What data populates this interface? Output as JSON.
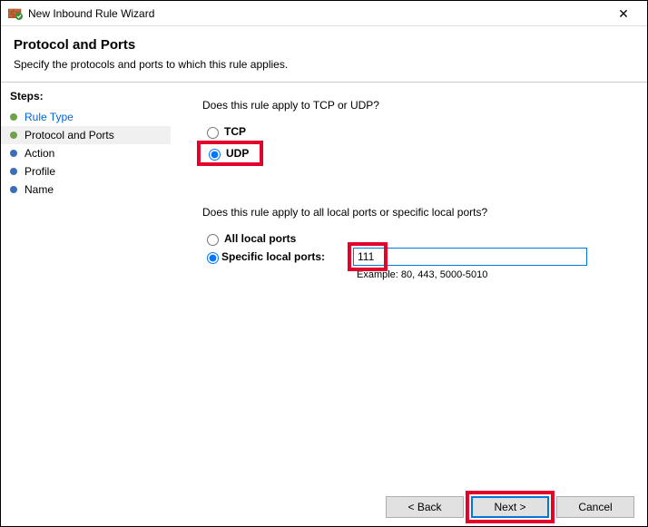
{
  "window": {
    "title": "New Inbound Rule Wizard"
  },
  "header": {
    "title": "Protocol and Ports",
    "subtitle": "Specify the protocols and ports to which this rule applies."
  },
  "steps": {
    "label": "Steps:",
    "items": [
      {
        "label": "Rule Type",
        "color": "#6fa04a",
        "link": true,
        "current": false
      },
      {
        "label": "Protocol and Ports",
        "color": "#6fa04a",
        "link": false,
        "current": true
      },
      {
        "label": "Action",
        "color": "#3a6fb7",
        "link": false,
        "current": false
      },
      {
        "label": "Profile",
        "color": "#3a6fb7",
        "link": false,
        "current": false
      },
      {
        "label": "Name",
        "color": "#3a6fb7",
        "link": false,
        "current": false
      }
    ]
  },
  "content": {
    "q1": "Does this rule apply to TCP or UDP?",
    "tcp": "TCP",
    "udp": "UDP",
    "q2": "Does this rule apply to all local ports or specific local ports?",
    "all_ports": "All local ports",
    "specific_ports": "Specific local ports:",
    "port_value": "111",
    "example": "Example: 80, 443, 5000-5010"
  },
  "buttons": {
    "back": "< Back",
    "next": "Next >",
    "cancel": "Cancel"
  },
  "colors": {
    "highlight": "#e4002b",
    "focus_border": "#0078d7"
  }
}
